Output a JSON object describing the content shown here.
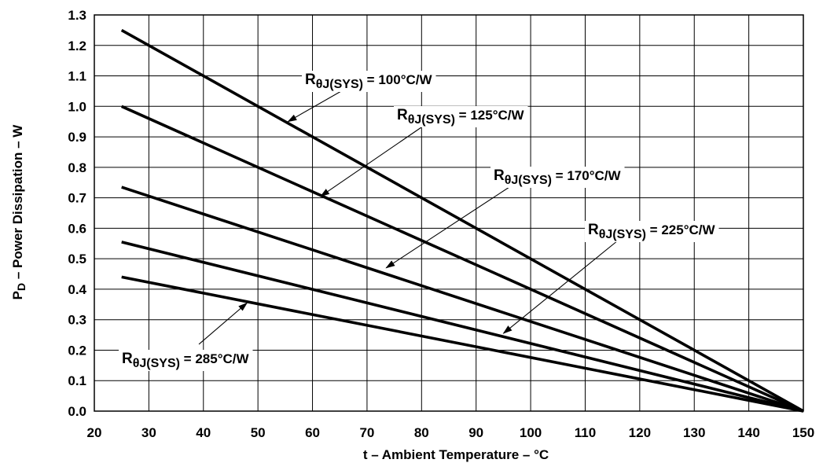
{
  "chart_data": {
    "type": "line",
    "xlabel": "t – Ambient Temperature – °C",
    "ylabel": {
      "main": "P",
      "sub": "D",
      "rest": " – Power Dissipation – W"
    },
    "xlim": [
      20,
      150
    ],
    "ylim": [
      0.0,
      1.3
    ],
    "x_ticks": [
      "20",
      "30",
      "40",
      "50",
      "60",
      "70",
      "80",
      "90",
      "100",
      "110",
      "120",
      "130",
      "140",
      "150"
    ],
    "y_ticks": [
      "0.0",
      "0.1",
      "0.2",
      "0.3",
      "0.4",
      "0.5",
      "0.6",
      "0.7",
      "0.8",
      "0.9",
      "1.0",
      "1.1",
      "1.2",
      "1.3"
    ],
    "grid": true,
    "series": [
      {
        "label": {
          "main": "R",
          "sub": "θJ(SYS)",
          "value": " = 100°C/W"
        },
        "points": [
          [
            25,
            1.25
          ],
          [
            150,
            0.0
          ]
        ],
        "arrow_to": [
          55.5,
          0.95
        ]
      },
      {
        "label": {
          "main": "R",
          "sub": "θJ(SYS)",
          "value": " = 125°C/W"
        },
        "points": [
          [
            25,
            1.0
          ],
          [
            150,
            0.0
          ]
        ],
        "arrow_to": [
          61.5,
          0.705
        ]
      },
      {
        "label": {
          "main": "R",
          "sub": "θJ(SYS)",
          "value": " = 170°C/W"
        },
        "points": [
          [
            25,
            0.735
          ],
          [
            150,
            0.0
          ]
        ],
        "arrow_to": [
          73.5,
          0.47
        ]
      },
      {
        "label": {
          "main": "R",
          "sub": "θJ(SYS)",
          "value": " = 225°C/W"
        },
        "points": [
          [
            25,
            0.555
          ],
          [
            150,
            0.0
          ]
        ],
        "arrow_to": [
          95,
          0.255
        ]
      },
      {
        "label": {
          "main": "R",
          "sub": "θJ(SYS)",
          "value": " = 285°C/W"
        },
        "points": [
          [
            25,
            0.44
          ],
          [
            150,
            0.0
          ]
        ],
        "arrow_to": [
          48,
          0.355
        ]
      }
    ]
  }
}
